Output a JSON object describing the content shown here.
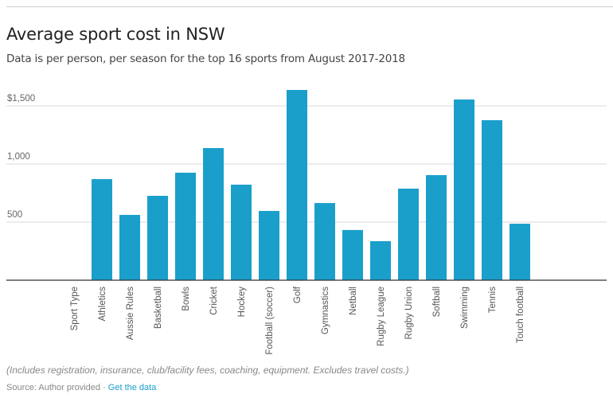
{
  "chart_data": {
    "type": "bar",
    "title": "Average sport cost in NSW",
    "subtitle": "Data is per person, per season for the top 16 sports from August 2017-2018",
    "xlabel": "",
    "ylabel": "",
    "categories": [
      "Sport Type",
      "Athletics",
      "Aussie Rules",
      "Basketball",
      "Bowls",
      "Cricket",
      "Hockey",
      "Football (soccer)",
      "Golf",
      "Gymnastics",
      "Netball",
      "Rugby League",
      "Rugby Union",
      "Softball",
      "Swimming",
      "Tennis",
      "Touch football"
    ],
    "values": [
      null,
      870,
      562,
      726,
      925,
      1137,
      822,
      596,
      1637,
      664,
      432,
      336,
      788,
      904,
      1555,
      1377,
      486
    ],
    "ylim": [
      0,
      1500
    ],
    "yticks": [
      {
        "value": 500,
        "label": "500"
      },
      {
        "value": 1000,
        "label": "1,000"
      },
      {
        "value": 1500,
        "label": "$1,500"
      }
    ],
    "grid": true,
    "bar_color": "#1a9fcb",
    "legend": "none"
  },
  "footer": {
    "note": "(Includes registration, insurance, club/facility fees, coaching, equipment. Excludes travel costs.)",
    "source_label": "Source: Author provided · ",
    "link_label": "Get the data",
    "link_color": "#1a9fcb"
  }
}
